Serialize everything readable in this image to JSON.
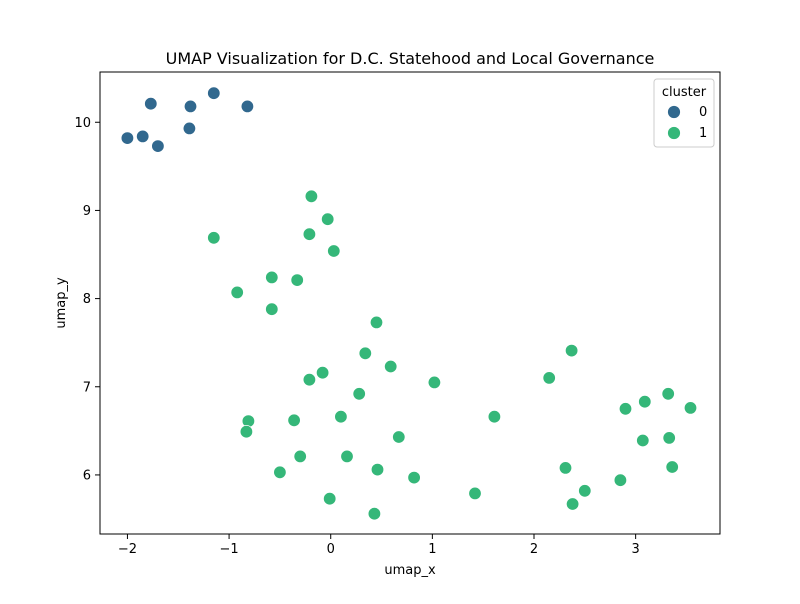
{
  "chart_data": {
    "type": "scatter",
    "title": "UMAP Visualization for D.C. Statehood and Local Governance",
    "xlabel": "umap_x",
    "ylabel": "umap_y",
    "xlim": [
      -2.27,
      3.83
    ],
    "ylim": [
      5.33,
      10.57
    ],
    "xticks": [
      -2,
      -1,
      0,
      1,
      2,
      3
    ],
    "yticks": [
      6,
      7,
      8,
      9,
      10
    ],
    "grid": false,
    "legend": {
      "title": "cluster",
      "placement": "top-right",
      "entries": [
        "0",
        "1"
      ]
    },
    "colors": {
      "0": "#31688e",
      "1": "#35b779"
    },
    "series": [
      {
        "name": "0",
        "points": [
          [
            -2.0,
            9.82
          ],
          [
            -1.85,
            9.84
          ],
          [
            -1.77,
            10.21
          ],
          [
            -1.7,
            9.73
          ],
          [
            -1.38,
            10.18
          ],
          [
            -1.39,
            9.93
          ],
          [
            -1.15,
            10.33
          ],
          [
            -0.82,
            10.18
          ]
        ]
      },
      {
        "name": "1",
        "points": [
          [
            -0.19,
            9.16
          ],
          [
            -0.03,
            8.9
          ],
          [
            -0.21,
            8.73
          ],
          [
            -1.15,
            8.69
          ],
          [
            0.03,
            8.54
          ],
          [
            -0.58,
            8.24
          ],
          [
            -0.33,
            8.21
          ],
          [
            -0.92,
            8.07
          ],
          [
            -0.58,
            7.88
          ],
          [
            0.45,
            7.73
          ],
          [
            0.34,
            7.38
          ],
          [
            0.59,
            7.23
          ],
          [
            -0.08,
            7.16
          ],
          [
            -0.21,
            7.08
          ],
          [
            1.02,
            7.05
          ],
          [
            0.28,
            6.92
          ],
          [
            0.1,
            6.66
          ],
          [
            1.61,
            6.66
          ],
          [
            -0.81,
            6.61
          ],
          [
            -0.36,
            6.62
          ],
          [
            -0.83,
            6.49
          ],
          [
            0.67,
            6.43
          ],
          [
            -0.3,
            6.21
          ],
          [
            0.16,
            6.21
          ],
          [
            -0.5,
            6.03
          ],
          [
            0.46,
            6.06
          ],
          [
            0.82,
            5.97
          ],
          [
            -0.01,
            5.73
          ],
          [
            1.42,
            5.79
          ],
          [
            0.43,
            5.56
          ],
          [
            2.37,
            7.41
          ],
          [
            2.15,
            7.1
          ],
          [
            3.32,
            6.92
          ],
          [
            3.09,
            6.83
          ],
          [
            2.9,
            6.75
          ],
          [
            3.54,
            6.76
          ],
          [
            3.07,
            6.39
          ],
          [
            3.33,
            6.42
          ],
          [
            2.31,
            6.08
          ],
          [
            3.36,
            6.09
          ],
          [
            2.85,
            5.94
          ],
          [
            2.5,
            5.82
          ],
          [
            2.38,
            5.67
          ]
        ]
      }
    ]
  }
}
